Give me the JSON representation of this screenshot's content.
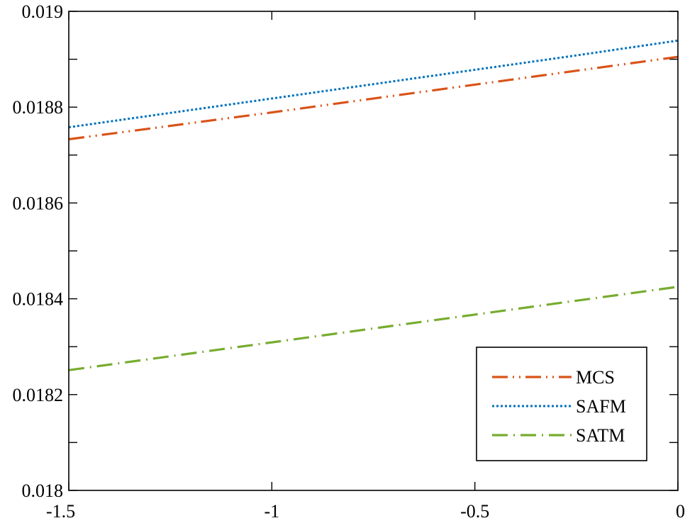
{
  "chart_data": {
    "type": "line",
    "title": "",
    "xlabel": "",
    "ylabel": "",
    "xlim": [
      -1.5,
      0
    ],
    "ylim": [
      0.018,
      0.019
    ],
    "grid": false,
    "legend_position": "bottom-right",
    "x_ticks": [
      -1.5,
      -1,
      -0.5,
      0
    ],
    "x_tick_labels": [
      "-1.5",
      "-1",
      "-0.5",
      "0"
    ],
    "y_ticks": [
      0.018,
      0.0182,
      0.0184,
      0.0186,
      0.0188,
      0.019
    ],
    "y_tick_labels": [
      "0.018",
      "0.0182",
      "0.0184",
      "0.0186",
      "0.0188",
      "0.019"
    ],
    "x": [
      -1.5,
      -1.25,
      -1.0,
      -0.75,
      -0.5,
      -0.25,
      0
    ],
    "series": [
      {
        "name": "MCS",
        "color": "#D95319",
        "dash": "long-dash-dot-dot",
        "values": [
          0.018733,
          0.018761,
          0.018789,
          0.018818,
          0.018847,
          0.018876,
          0.018905
        ]
      },
      {
        "name": "SAFM",
        "color": "#0072BD",
        "dash": "dotted",
        "values": [
          0.018758,
          0.018788,
          0.018818,
          0.018848,
          0.018878,
          0.018908,
          0.018939
        ]
      },
      {
        "name": "SATM",
        "color": "#77AC30",
        "dash": "long-dash-dot",
        "values": [
          0.018251,
          0.01828,
          0.018309,
          0.018338,
          0.018367,
          0.018396,
          0.018425
        ]
      }
    ]
  }
}
